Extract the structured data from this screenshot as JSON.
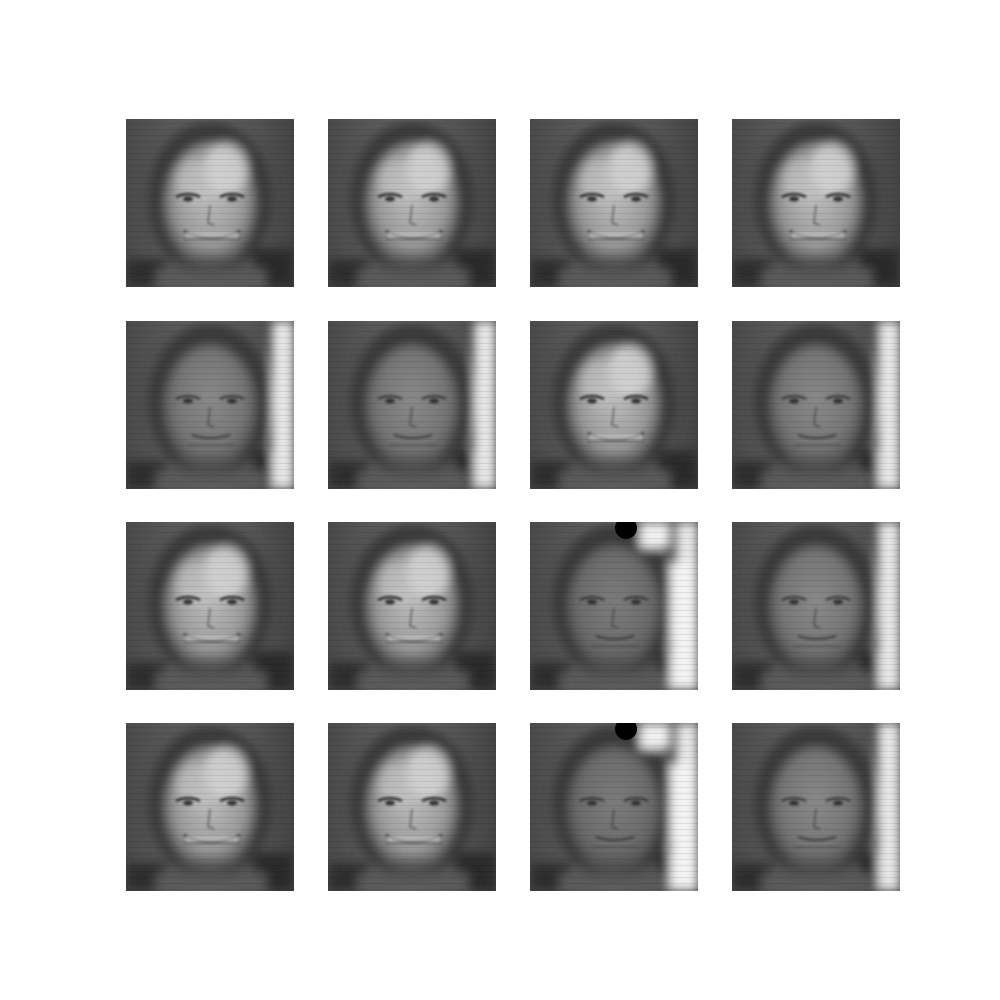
{
  "grid": {
    "rows": 4,
    "cols": 4,
    "tiles": [
      {
        "variant": "a"
      },
      {
        "variant": "a"
      },
      {
        "variant": "a"
      },
      {
        "variant": "a"
      },
      {
        "variant": "b"
      },
      {
        "variant": "b"
      },
      {
        "variant": "a"
      },
      {
        "variant": "b"
      },
      {
        "variant": "a"
      },
      {
        "variant": "a"
      },
      {
        "variant": "c"
      },
      {
        "variant": "b"
      },
      {
        "variant": "a"
      },
      {
        "variant": "a"
      },
      {
        "variant": "c"
      },
      {
        "variant": "b"
      }
    ]
  },
  "colors": {
    "background": "#ffffff",
    "tile_base": "#6a6a6a",
    "dark": "#1e1e1e",
    "light": "#e8e8e8"
  }
}
